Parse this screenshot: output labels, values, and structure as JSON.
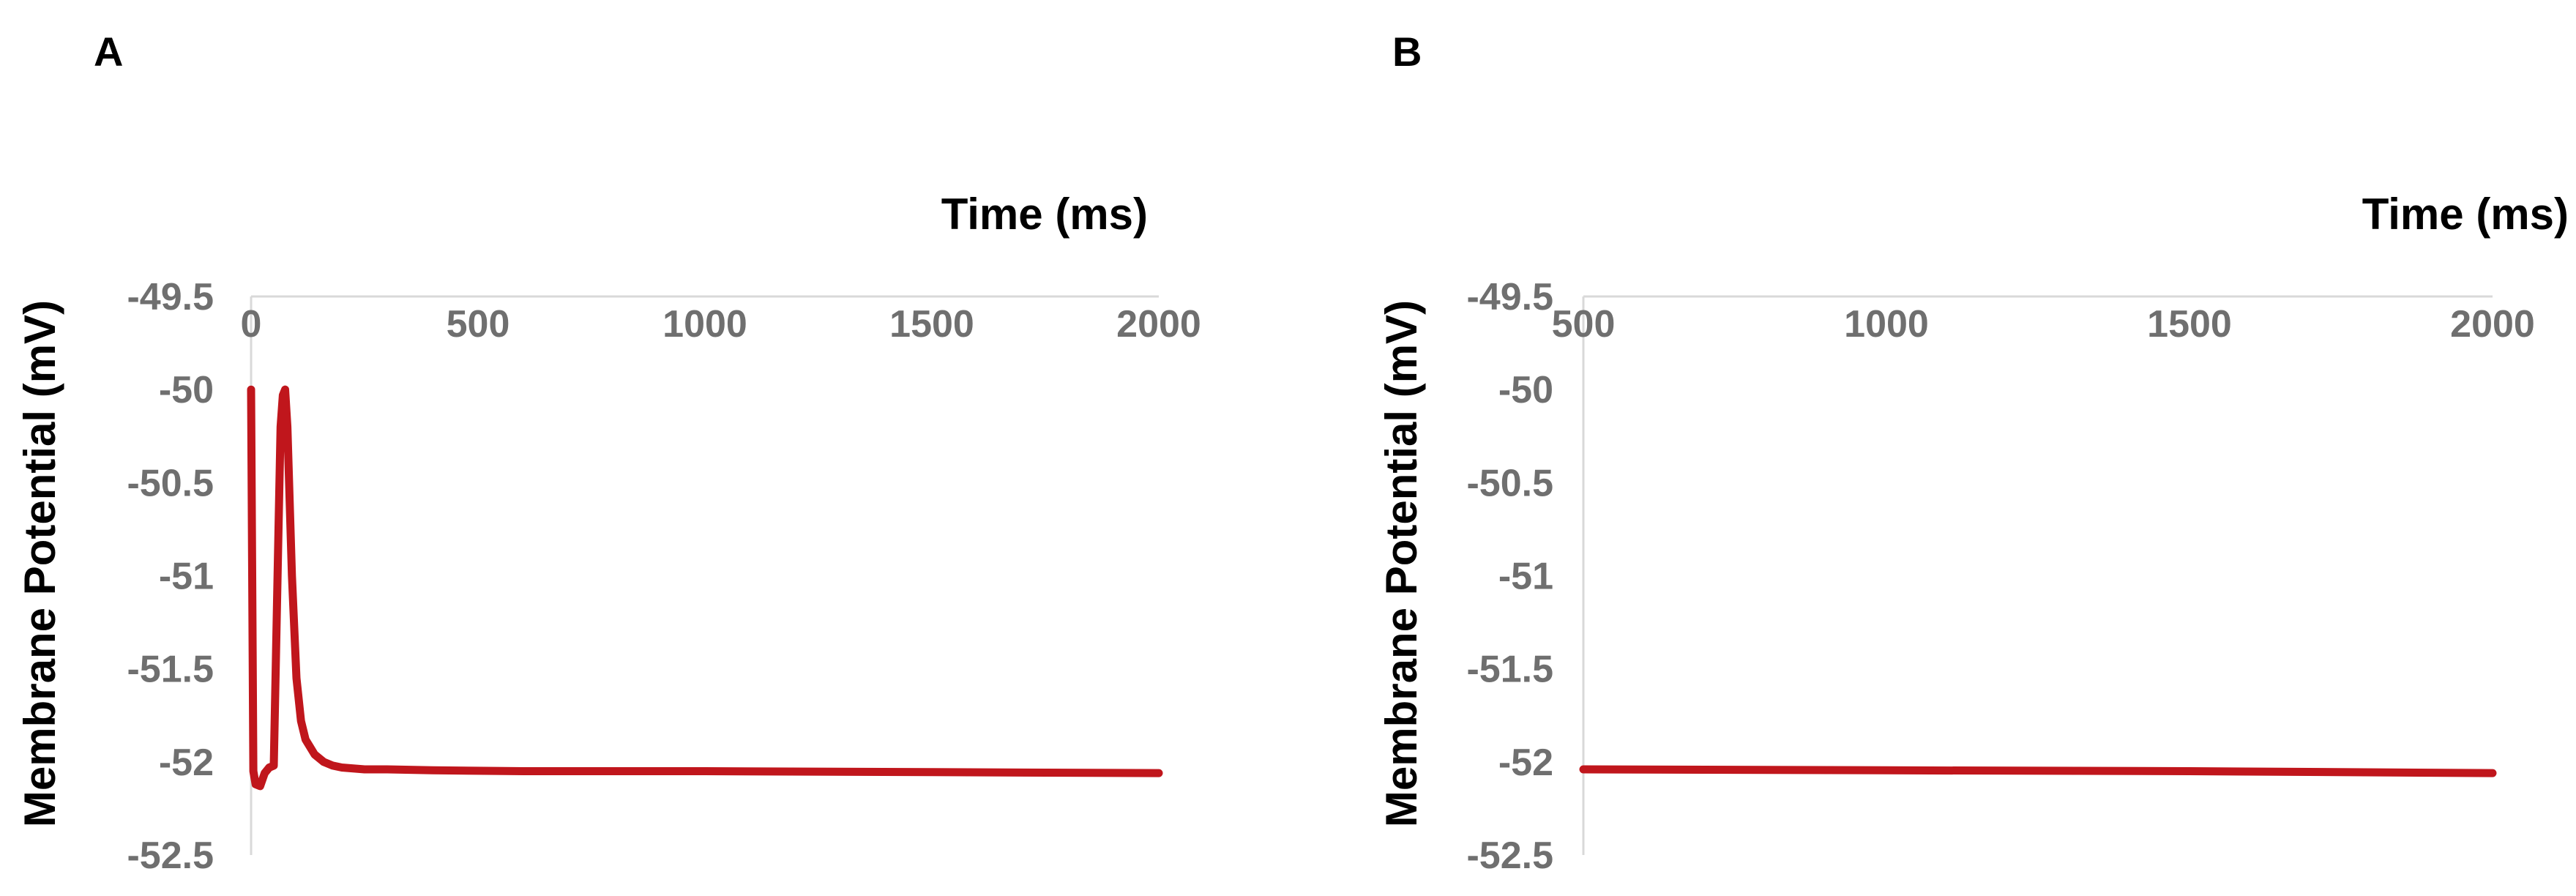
{
  "chart_data": [
    {
      "type": "line",
      "panel_label": "A",
      "xlabel": "Time (ms)",
      "ylabel": "Membrane Potential (mV)",
      "xlim": [
        0,
        2000
      ],
      "ylim": [
        -52.5,
        -49.5
      ],
      "x_ticks": [
        0,
        500,
        1000,
        1500,
        2000
      ],
      "y_ticks": [
        -49.5,
        -50,
        -50.5,
        -51,
        -51.5,
        -52,
        -52.5
      ],
      "x_axis_position": "top",
      "grid": false,
      "legend": "none",
      "color": "#c0161c",
      "series": [
        {
          "x": [
            0,
            5,
            10,
            20,
            30,
            40,
            50,
            60,
            65,
            70,
            75,
            80,
            85,
            90,
            100,
            110,
            120,
            140,
            160,
            180,
            200,
            250,
            300,
            400,
            600,
            1000,
            1500,
            2000
          ],
          "y": [
            -50.0,
            -52.05,
            -52.12,
            -52.13,
            -52.06,
            -52.03,
            -52.02,
            -50.8,
            -50.2,
            -50.03,
            -50.0,
            -50.2,
            -50.6,
            -51.0,
            -51.55,
            -51.78,
            -51.88,
            -51.96,
            -52.0,
            -52.02,
            -52.03,
            -52.04,
            -52.04,
            -52.045,
            -52.05,
            -52.05,
            -52.055,
            -52.06
          ]
        }
      ]
    },
    {
      "type": "line",
      "panel_label": "B",
      "xlabel": "Time (ms)",
      "ylabel": "Membrane Potential (mV)",
      "xlim": [
        500,
        2000
      ],
      "ylim": [
        -52.5,
        -49.5
      ],
      "x_ticks": [
        500,
        1000,
        1500,
        2000
      ],
      "y_ticks": [
        -49.5,
        -50,
        -50.5,
        -51,
        -51.5,
        -52,
        -52.5
      ],
      "x_axis_position": "top",
      "grid": false,
      "legend": "none",
      "color": "#c0161c",
      "series": [
        {
          "x": [
            500,
            1000,
            1500,
            2000
          ],
          "y": [
            -52.04,
            -52.045,
            -52.05,
            -52.06
          ]
        }
      ]
    }
  ]
}
